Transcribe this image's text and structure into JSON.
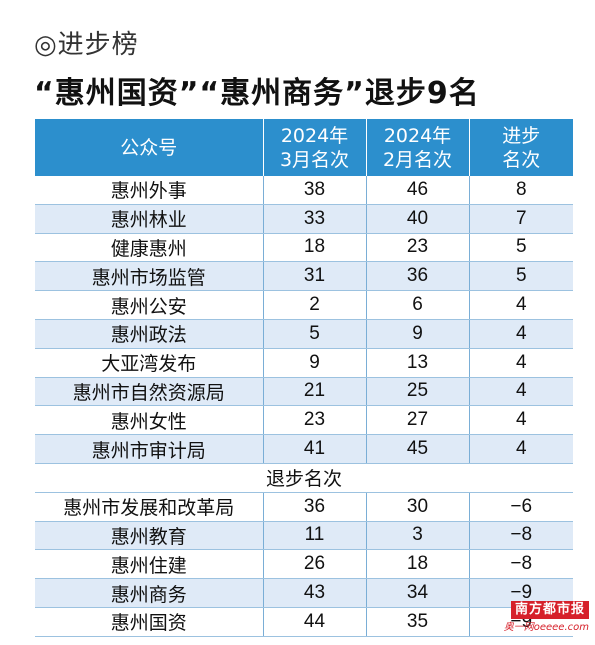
{
  "section_label": "◎进步榜",
  "headline": "“惠州国资”“惠州商务”退步9名",
  "chart_data": {
    "type": "table",
    "columns": [
      "公众号",
      "2024年\n3月名次",
      "2024年\n2月名次",
      "进步\n名次"
    ],
    "progress_rows": [
      {
        "name": "惠州外事",
        "march": "38",
        "feb": "46",
        "change": "8"
      },
      {
        "name": "惠州林业",
        "march": "33",
        "feb": "40",
        "change": "7"
      },
      {
        "name": "健康惠州",
        "march": "18",
        "feb": "23",
        "change": "5"
      },
      {
        "name": "惠州市场监管",
        "march": "31",
        "feb": "36",
        "change": "5"
      },
      {
        "name": "惠州公安",
        "march": "2",
        "feb": "6",
        "change": "4"
      },
      {
        "name": "惠州政法",
        "march": "5",
        "feb": "9",
        "change": "4"
      },
      {
        "name": "大亚湾发布",
        "march": "9",
        "feb": "13",
        "change": "4"
      },
      {
        "name": "惠州市自然资源局",
        "march": "21",
        "feb": "25",
        "change": "4"
      },
      {
        "name": "惠州女性",
        "march": "23",
        "feb": "27",
        "change": "4"
      },
      {
        "name": "惠州市审计局",
        "march": "41",
        "feb": "45",
        "change": "4"
      }
    ],
    "divider_label": "退步名次",
    "decline_rows": [
      {
        "name": "惠州市发展和改革局",
        "march": "36",
        "feb": "30",
        "change": "−6"
      },
      {
        "name": "惠州教育",
        "march": "11",
        "feb": "3",
        "change": "−8"
      },
      {
        "name": "惠州住建",
        "march": "26",
        "feb": "18",
        "change": "−8"
      },
      {
        "name": "惠州商务",
        "march": "43",
        "feb": "34",
        "change": "−9"
      },
      {
        "name": "惠州国资",
        "march": "44",
        "feb": "35",
        "change": "−9"
      }
    ]
  },
  "watermark": {
    "logo": "南方都市报",
    "site": "奥一网oeeee.com"
  },
  "colors": {
    "header_bg": "#2c8fcd",
    "row_alt_bg": "#dfeaf7",
    "watermark_red": "#d6202a"
  }
}
